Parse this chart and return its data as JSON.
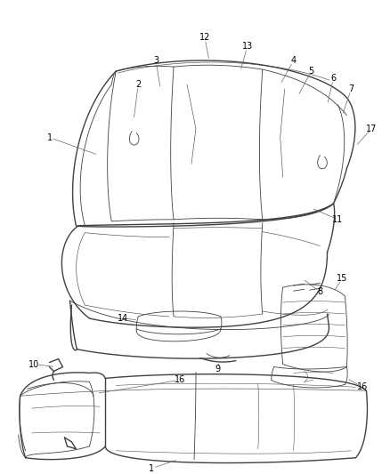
{
  "bg_color": "#ffffff",
  "line_color": "#404040",
  "label_color": "#000000",
  "label_fontsize": 7.0,
  "fig_width": 4.38,
  "fig_height": 5.33,
  "dpi": 100
}
